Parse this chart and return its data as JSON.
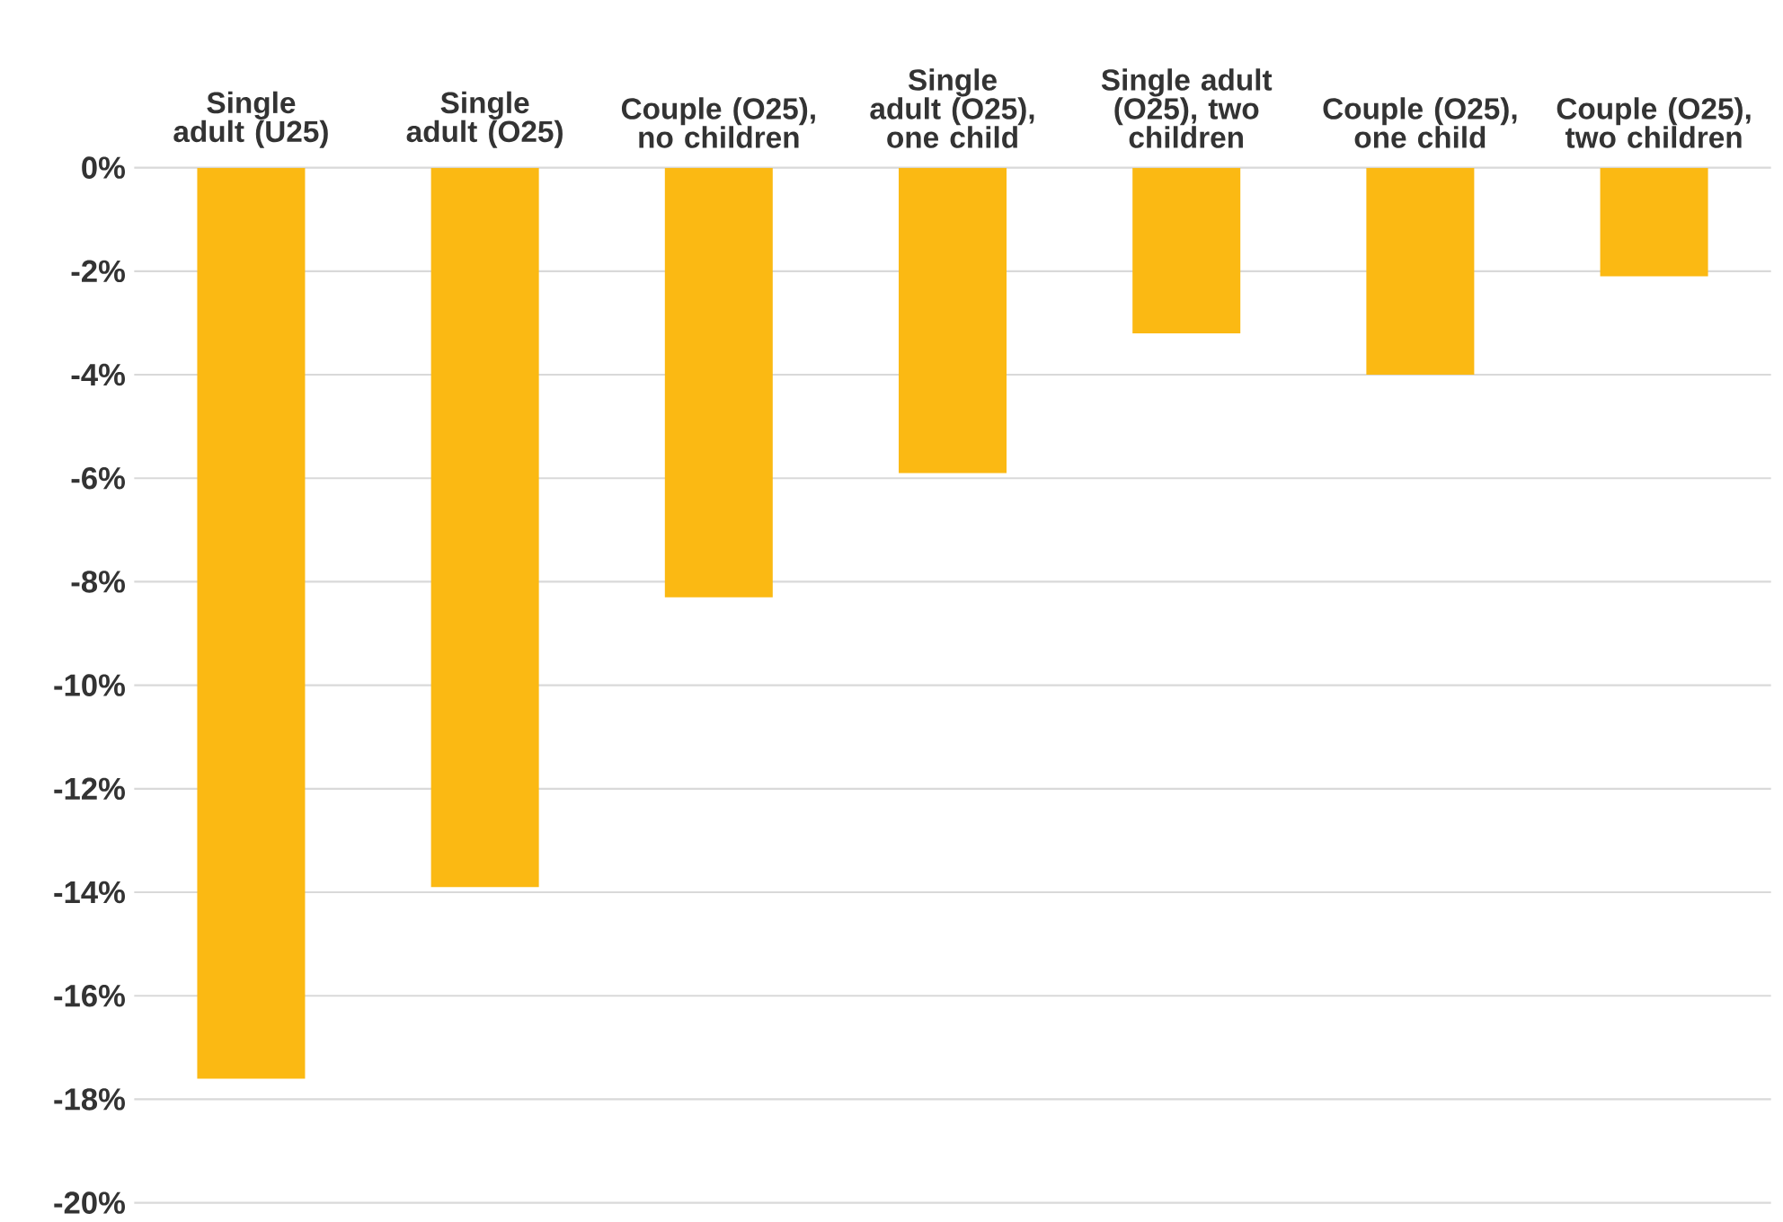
{
  "chart_data": {
    "type": "bar",
    "categories": [
      "Single adult (U25)",
      "Single adult (O25)",
      "Couple (O25), no children",
      "Single adult (O25), one child",
      "Single adult (O25), two children",
      "Couple (O25), one child",
      "Couple (O25), two children"
    ],
    "values": [
      -17.6,
      -13.9,
      -8.3,
      -5.9,
      -3.2,
      -4.0,
      -2.1
    ],
    "color": "#fbb913",
    "ylim": [
      -20,
      0
    ],
    "yticks": [
      {
        "value": 0,
        "label": "0%"
      },
      {
        "value": -2,
        "label": "-2%"
      },
      {
        "value": -4,
        "label": "-4%"
      },
      {
        "value": -6,
        "label": "-6%"
      },
      {
        "value": -8,
        "label": "-8%"
      },
      {
        "value": -10,
        "label": "-10%"
      },
      {
        "value": -12,
        "label": "-12%"
      },
      {
        "value": -14,
        "label": "-14%"
      },
      {
        "value": -16,
        "label": "-16%"
      },
      {
        "value": -18,
        "label": "-18%"
      },
      {
        "value": -20,
        "label": "-20%"
      }
    ],
    "grid": "y"
  }
}
